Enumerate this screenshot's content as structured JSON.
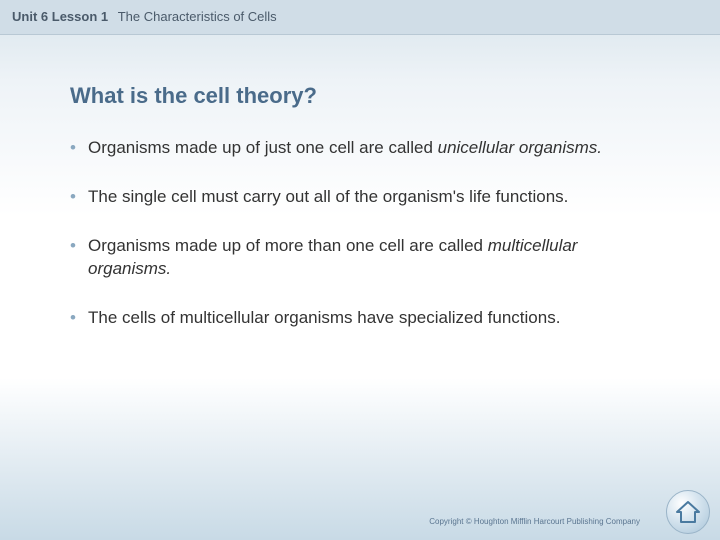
{
  "header": {
    "unit": "Unit 6",
    "lesson": "Lesson 1",
    "title": "The Characteristics of Cells"
  },
  "heading": "What is the cell theory?",
  "bullets": [
    {
      "html": "Organisms made up of just one cell are called <em>unicellular organisms.</em>"
    },
    {
      "html": "The single cell must carry out all of the organism's life functions."
    },
    {
      "html": "Organisms made up of more than one cell are called <em>multicellular organisms.</em>"
    },
    {
      "html": "The cells of multicellular organisms have specialized functions."
    }
  ],
  "copyright": "Copyright © Houghton Mifflin Harcourt Publishing Company",
  "colors": {
    "heading": "#4a6b8a",
    "bullet_marker": "#8aa8c0",
    "text": "#333333",
    "header_bg": "#d0dde7",
    "home_stroke": "#4a7aa0"
  }
}
